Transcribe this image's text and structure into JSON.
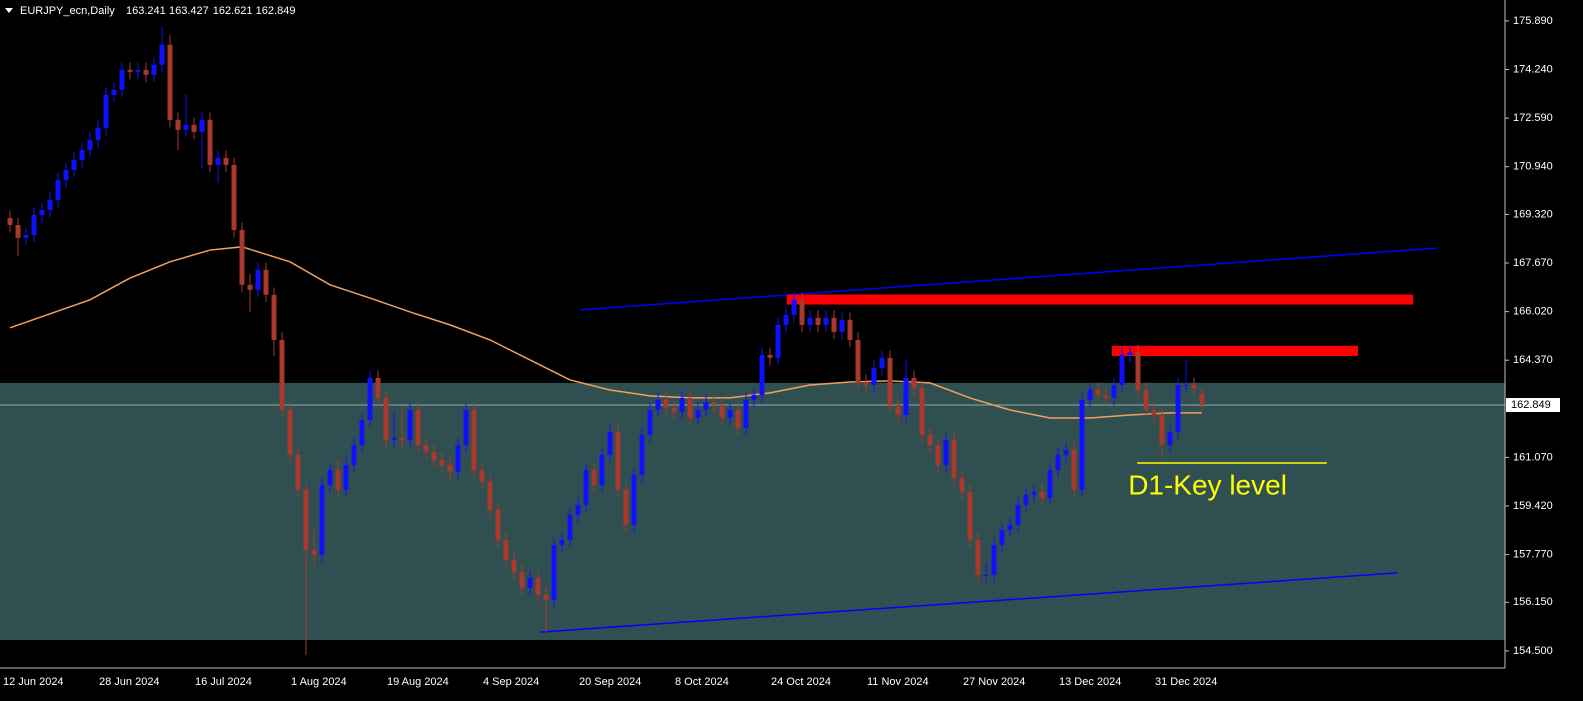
{
  "chart_data": {
    "type": "candlestick",
    "title": "EURJPY_ecn,Daily",
    "categories": [
      "12 Jun 2024",
      null,
      null,
      null,
      null,
      null,
      null,
      null,
      null,
      null,
      null,
      null,
      "28 Jun 2024",
      null,
      null,
      null,
      null,
      null,
      null,
      null,
      null,
      null,
      null,
      null,
      "16 Jul 2024",
      null,
      null,
      null,
      null,
      null,
      null,
      null,
      null,
      null,
      null,
      null,
      "1 Aug 2024",
      null,
      null,
      null,
      null,
      null,
      null,
      null,
      null,
      null,
      null,
      null,
      "19 Aug 2024",
      null,
      null,
      null,
      null,
      null,
      null,
      null,
      null,
      null,
      null,
      null,
      "4 Sep 2024",
      null,
      null,
      null,
      null,
      null,
      null,
      null,
      null,
      null,
      null,
      null,
      "20 Sep 2024",
      null,
      null,
      null,
      null,
      null,
      null,
      null,
      null,
      null,
      null,
      null,
      "8 Oct 2024",
      null,
      null,
      null,
      null,
      null,
      null,
      null,
      null,
      null,
      null,
      null,
      "24 Oct 2024",
      null,
      null,
      null,
      null,
      null,
      null,
      null,
      null,
      null,
      null,
      null,
      "11 Nov 2024",
      null,
      null,
      null,
      null,
      null,
      null,
      null,
      null,
      null,
      null,
      null,
      "27 Nov 2024",
      null,
      null,
      null,
      null,
      null,
      null,
      null,
      null,
      null,
      null,
      null,
      "13 Dec 2024",
      null,
      null,
      null,
      null,
      null,
      null,
      null,
      null,
      null,
      null,
      null,
      "31 Dec 2024",
      null,
      null,
      null,
      null,
      null
    ],
    "open": [
      169.2,
      168.96,
      168.52,
      168.62,
      169.3,
      169.47,
      169.81,
      170.49,
      170.83,
      171.17,
      171.51,
      171.85,
      172.26,
      173.38,
      173.55,
      174.23,
      174.16,
      174.23,
      174.06,
      174.4,
      175.08,
      172.53,
      172.19,
      172.36,
      172.12,
      172.53,
      171,
      171.24,
      171,
      168.79,
      166.93,
      166.76,
      167.44,
      166.59,
      165.06,
      162.68,
      161.15,
      159.97,
      157.93,
      157.76,
      160.13,
      160.64,
      159.97,
      160.81,
      161.49,
      162.34,
      163.77,
      163.09,
      161.66,
      161.73,
      161.66,
      162.68,
      161.49,
      161.26,
      160.98,
      160.81,
      160.58,
      161.49,
      162.68,
      160.64,
      160.24,
      159.29,
      158.27,
      157.59,
      157.18,
      156.64,
      156.98,
      156.4,
      156.23,
      158.1,
      158.27,
      159.12,
      159.46,
      160.64,
      160.13,
      161.15,
      161.93,
      159.97,
      158.78,
      160.47,
      161.83,
      162.68,
      163.02,
      162.75,
      162.61,
      163.09,
      162.41,
      162.68,
      162.95,
      162.85,
      162.41,
      162.68,
      162.07,
      163.02,
      163.19,
      164.55,
      164.45,
      165.57,
      165.91,
      166.42,
      165.57,
      165.81,
      165.57,
      165.81,
      165.33,
      165.74,
      165.06,
      163.63,
      163.53,
      164.11,
      164.45,
      162.85,
      162.51,
      163.77,
      163.43,
      161.83,
      161.49,
      160.81,
      161.66,
      160.37,
      159.9,
      158.27,
      157.08,
      157.08,
      158.1,
      158.61,
      158.78,
      159.46,
      159.8,
      159.9,
      159.69,
      160.64,
      161.15,
      161.32,
      159.97,
      163.02,
      163.36,
      163.19,
      163.09,
      163.53,
      164.55,
      164.65,
      163.36,
      162.68,
      162.51,
      161.49,
      161.93,
      163.53,
      163.53,
      163.241
    ],
    "high": [
      169.45,
      169.21,
      168.87,
      169.55,
      169.72,
      170.06,
      170.74,
      171.08,
      171.42,
      171.76,
      172.1,
      172.51,
      173.63,
      173.8,
      174.48,
      174.48,
      174.48,
      174.48,
      174.65,
      175.7,
      175.4,
      172.78,
      173.4,
      172.61,
      172.78,
      172.78,
      171.49,
      171.49,
      171.25,
      169.04,
      167.3,
      167.69,
      167.69,
      166.84,
      165.31,
      162.93,
      161.4,
      160.22,
      158.6,
      160.38,
      160.89,
      161,
      161.06,
      161.74,
      162.59,
      164.02,
      164.02,
      163.34,
      162.6,
      162.8,
      162.93,
      162.93,
      161.74,
      161.51,
      161.23,
      161.06,
      161.74,
      162.93,
      162.93,
      160.89,
      160.49,
      159.54,
      158.52,
      157.84,
      157.43,
      157.23,
      157.23,
      156.65,
      158.35,
      158.52,
      159.37,
      159.71,
      160.89,
      160.89,
      161.4,
      162.18,
      162.18,
      160.22,
      160.72,
      162.08,
      162.93,
      163.27,
      163.27,
      163,
      163.34,
      163.34,
      162.93,
      163.2,
      163.2,
      163.1,
      162.93,
      162.93,
      163.27,
      163.44,
      164.8,
      164.8,
      165.82,
      166.16,
      166.7,
      166.67,
      166.06,
      166.06,
      166.06,
      166.06,
      165.99,
      165.99,
      165.31,
      163.88,
      164.36,
      164.7,
      164.7,
      163.1,
      164.4,
      164.02,
      163.68,
      162.08,
      161.74,
      161.91,
      161.91,
      160.62,
      160.15,
      158.52,
      157.5,
      158.35,
      158.86,
      159.03,
      159.71,
      160.05,
      160.15,
      160.15,
      160.89,
      161.4,
      161.57,
      161.57,
      163.27,
      163.61,
      163.61,
      163.44,
      163.78,
      164.8,
      164.9,
      164.9,
      163.61,
      162.93,
      162.76,
      162.18,
      163.78,
      164.4,
      163.78,
      163.427
    ],
    "low": [
      168.71,
      167.9,
      168.27,
      168.37,
      169.05,
      169.22,
      169.56,
      170.24,
      170.58,
      170.92,
      171.26,
      171.6,
      172.01,
      173.13,
      173.3,
      173.91,
      173.91,
      173.81,
      173.81,
      174.15,
      172.28,
      171.5,
      171.94,
      171.87,
      170.9,
      170.75,
      170.4,
      170.75,
      168.54,
      166.68,
      166,
      166.51,
      166.34,
      164.5,
      162.43,
      160.9,
      159.72,
      154.36,
      157.4,
      157.51,
      159.88,
      159.72,
      159.72,
      160.56,
      161.24,
      162.09,
      162.84,
      161.41,
      161.41,
      161.41,
      161.41,
      161.24,
      161.01,
      160.73,
      160.56,
      160.33,
      160.33,
      161.24,
      160.39,
      159.99,
      159.04,
      158.02,
      157.34,
      156.93,
      156.39,
      156.39,
      156.15,
      155.14,
      155.98,
      157.85,
      158.02,
      158.87,
      159.21,
      159.88,
      159.88,
      160.9,
      159.72,
      158.53,
      158.53,
      160.22,
      161.58,
      162.43,
      162.5,
      162.36,
      162.36,
      162.16,
      162.16,
      162.43,
      162.6,
      162.16,
      162.16,
      161.82,
      161.82,
      162.77,
      162.94,
      164.2,
      164.2,
      165.32,
      165.66,
      165.32,
      165.32,
      165.32,
      165.32,
      165.08,
      165.08,
      164.81,
      163.38,
      163.28,
      163.28,
      163.86,
      162.6,
      162.26,
      162.26,
      163.18,
      161.58,
      161.24,
      160.56,
      160.56,
      160.12,
      159.65,
      158.02,
      156.83,
      156.83,
      156.83,
      157.85,
      158.36,
      158.53,
      159.21,
      159.55,
      159.44,
      159.44,
      160.39,
      160.9,
      159.72,
      159.72,
      162.77,
      162.94,
      162.84,
      162.84,
      163.28,
      164.3,
      163.11,
      162.43,
      162.26,
      161.1,
      161.24,
      161.68,
      163.28,
      163.18,
      162.621
    ],
    "close": [
      168.96,
      168.52,
      168.62,
      169.3,
      169.47,
      169.81,
      170.49,
      170.83,
      171.17,
      171.51,
      171.85,
      172.26,
      173.38,
      173.55,
      174.23,
      174.16,
      174.23,
      174.06,
      174.4,
      175.08,
      172.53,
      172.19,
      172.36,
      172.12,
      172.53,
      171,
      171.24,
      171,
      168.79,
      166.93,
      166.76,
      167.44,
      166.59,
      165.06,
      162.68,
      161.15,
      159.97,
      157.93,
      157.76,
      160.13,
      160.64,
      159.97,
      160.81,
      161.49,
      162.34,
      163.77,
      163.09,
      161.66,
      161.73,
      161.66,
      162.68,
      161.49,
      161.26,
      160.98,
      160.81,
      160.58,
      161.49,
      162.68,
      160.64,
      160.24,
      159.29,
      158.27,
      157.59,
      157.18,
      156.64,
      156.98,
      156.4,
      156.23,
      158.1,
      158.27,
      159.12,
      159.46,
      160.64,
      160.13,
      161.15,
      161.93,
      159.97,
      158.78,
      160.47,
      161.83,
      162.68,
      163.02,
      162.75,
      162.61,
      163.09,
      162.41,
      162.68,
      162.95,
      162.85,
      162.41,
      162.68,
      162.07,
      163.02,
      163.19,
      164.55,
      164.45,
      165.57,
      165.91,
      166.42,
      165.57,
      165.81,
      165.57,
      165.81,
      165.33,
      165.74,
      165.06,
      163.63,
      163.53,
      164.11,
      164.45,
      162.85,
      162.51,
      163.77,
      163.43,
      161.83,
      161.49,
      160.81,
      161.66,
      160.37,
      159.9,
      158.27,
      157.08,
      157.08,
      158.1,
      158.61,
      158.78,
      159.46,
      159.8,
      159.9,
      159.69,
      160.64,
      161.15,
      161.32,
      159.97,
      163.02,
      163.36,
      163.19,
      163.09,
      163.53,
      164.55,
      164.65,
      163.36,
      162.68,
      162.51,
      161.49,
      161.93,
      163.53,
      163.53,
      163.43,
      162.849
    ],
    "colors": {
      "up": "#1010ff",
      "down": "#a8392c"
    },
    "ylim": [
      153.92,
      176.6
    ],
    "yticks": [
      {
        "value": 175.89,
        "label": "175.890"
      },
      {
        "value": 174.24,
        "label": "174.240"
      },
      {
        "value": 172.59,
        "label": "172.590"
      },
      {
        "value": 170.94,
        "label": "170.940"
      },
      {
        "value": 169.32,
        "label": "169.320"
      },
      {
        "value": 167.67,
        "label": "167.670"
      },
      {
        "value": 166.02,
        "label": "166.020"
      },
      {
        "value": 164.37,
        "label": "164.370"
      },
      {
        "value": 161.07,
        "label": "161.070"
      },
      {
        "value": 159.42,
        "label": "159.420"
      },
      {
        "value": 157.77,
        "label": "157.770"
      },
      {
        "value": 156.15,
        "label": "156.150"
      },
      {
        "value": 154.5,
        "label": "154.500"
      }
    ],
    "ma": {
      "color": "#f0a060",
      "x": [
        0,
        10,
        15,
        20,
        25,
        29,
        35,
        40,
        45,
        50,
        55,
        60,
        65,
        70,
        75,
        80,
        85,
        90,
        95,
        100,
        105,
        110,
        115,
        120,
        125,
        130,
        135,
        140,
        145,
        149
      ],
      "values": [
        165.47,
        166.42,
        167.16,
        167.71,
        168.11,
        168.22,
        167.71,
        166.93,
        166.48,
        166.01,
        165.57,
        165.06,
        164.38,
        163.7,
        163.36,
        163.16,
        163.09,
        163.09,
        163.26,
        163.53,
        163.63,
        163.67,
        163.6,
        163.09,
        162.68,
        162.41,
        162.41,
        162.51,
        162.58,
        162.58
      ]
    },
    "levels": {
      "zone": {
        "range": [
          154.87,
          163.6
        ],
        "color": "#304f50"
      },
      "trendlines": [
        {
          "x": [
            71.25,
            178.4
          ],
          "values": [
            166.08,
            168.18
          ],
          "color": "#0000ff"
        },
        {
          "x": [
            66.25,
            173.4
          ],
          "values": [
            155.14,
            157.15
          ],
          "color": "#0000ff"
        }
      ],
      "rects": [
        {
          "x": [
            97.1,
            175.4
          ],
          "range": [
            166.26,
            166.6
          ],
          "color": "#ff0000"
        },
        {
          "x": [
            137.75,
            168.5
          ],
          "range": [
            164.51,
            164.86
          ],
          "color": "#ff0000"
        }
      ],
      "key_level": {
        "text": "D1-Key level",
        "x": [
          140.9,
          164.6
        ],
        "value": 160.88,
        "color": "#ffff00"
      }
    }
  }
}
